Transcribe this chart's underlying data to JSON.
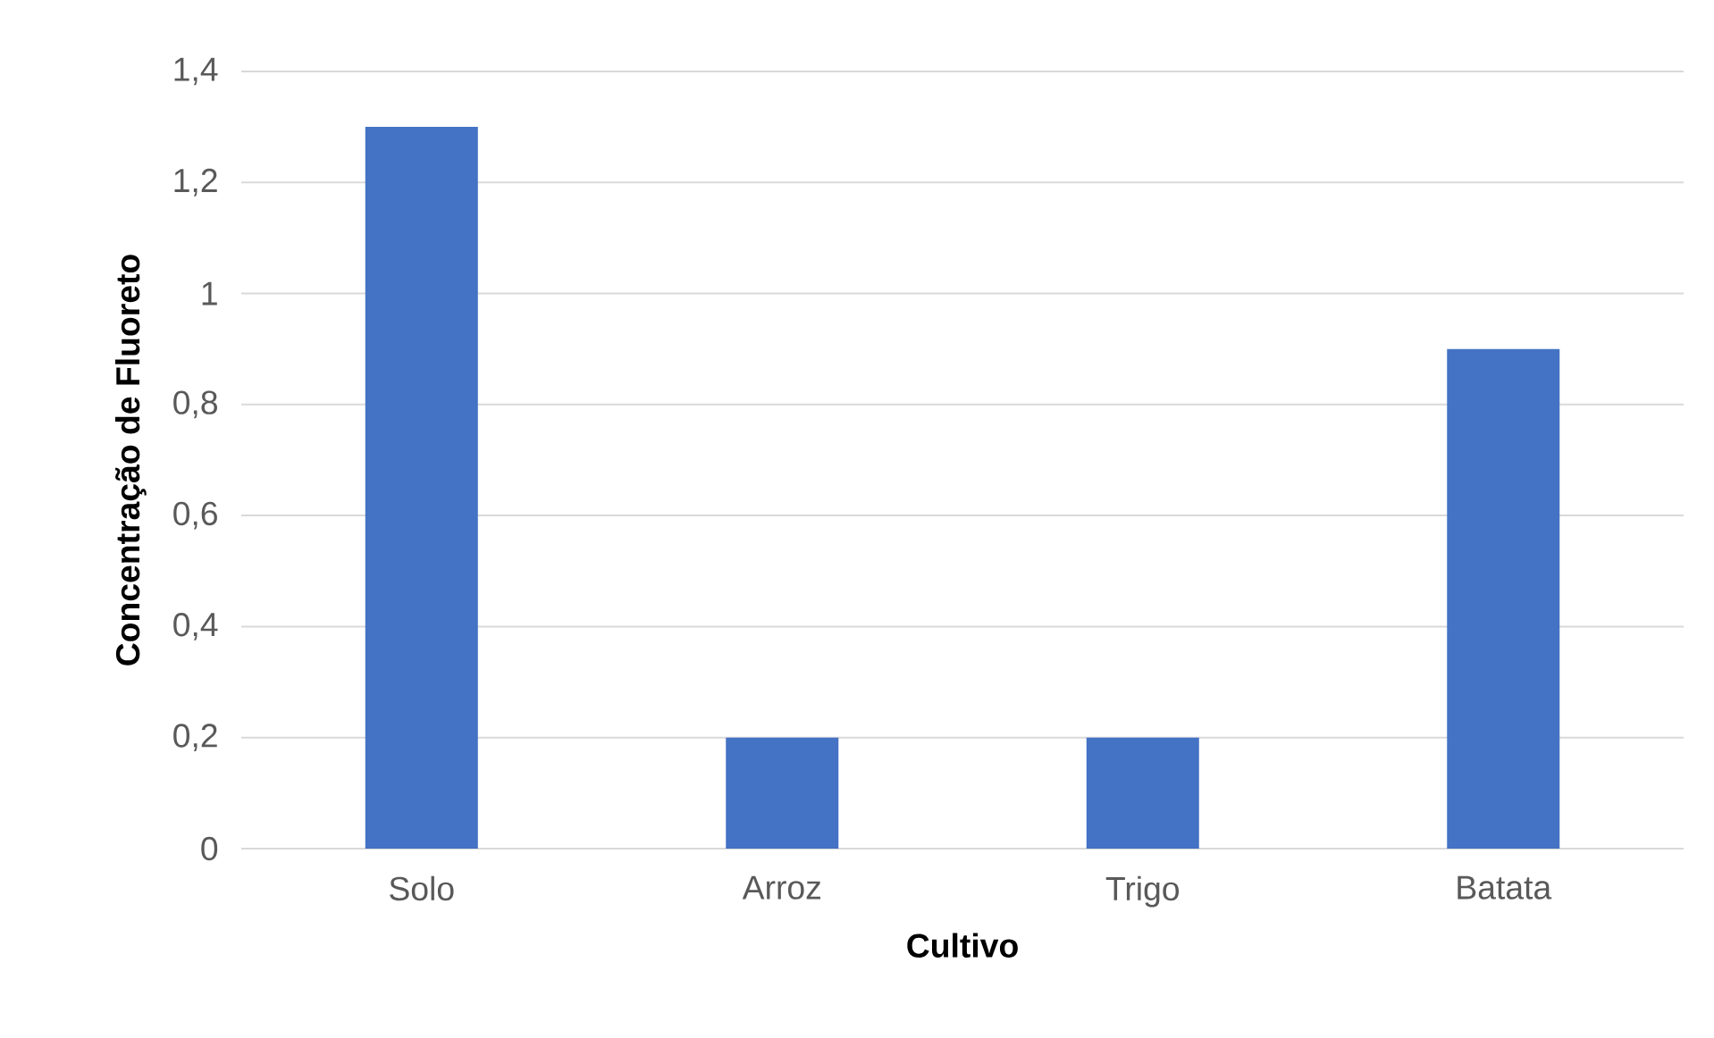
{
  "chart_data": {
    "type": "bar",
    "xlabel": "Cultivo",
    "ylabel": "Concentração de Fluoreto",
    "categories": [
      "Solo",
      "Arroz",
      "Trigo",
      "Batata"
    ],
    "values": [
      1.3,
      0.2,
      0.2,
      0.9
    ],
    "color": "#4472c4",
    "ylim": [
      0,
      1.4
    ],
    "yticks": [
      0,
      {
        "value": 0.2,
        "label": "0,2"
      },
      {
        "value": 0.4,
        "label": "0,4"
      },
      {
        "value": 0.6,
        "label": "0,6"
      },
      {
        "value": 0.8,
        "label": "0,8"
      },
      1,
      {
        "value": 1.2,
        "label": "1,2"
      },
      {
        "value": 1.4,
        "label": "1,4"
      }
    ],
    "grid": "y"
  }
}
